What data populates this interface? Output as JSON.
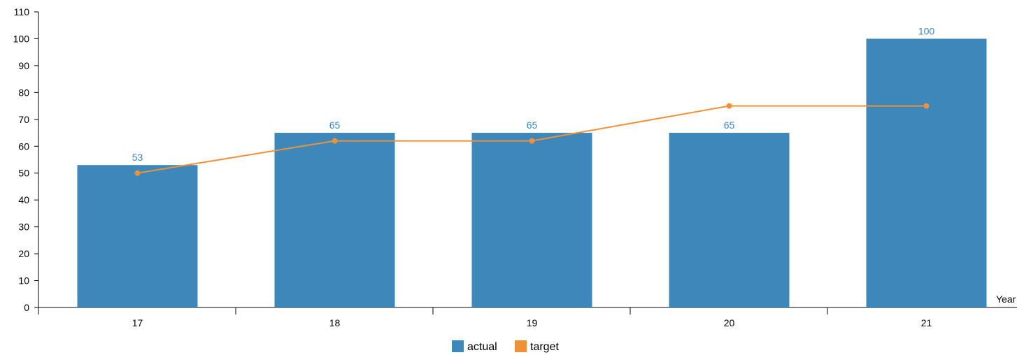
{
  "chart_data": {
    "type": "bar",
    "categories": [
      "17",
      "18",
      "19",
      "20",
      "21"
    ],
    "series": [
      {
        "name": "actual",
        "type": "bar",
        "values": [
          53,
          65,
          65,
          65,
          100
        ],
        "color": "#3d87bb"
      },
      {
        "name": "target",
        "type": "line",
        "values": [
          50,
          62,
          62,
          75,
          75
        ],
        "color": "#ef9139"
      }
    ],
    "xlabel": "Year",
    "ylabel": "",
    "ylim": [
      0,
      110
    ],
    "yticks": [
      0,
      10,
      20,
      30,
      40,
      50,
      60,
      70,
      80,
      90,
      100,
      110
    ],
    "grid": false,
    "legend_position": "bottom",
    "data_labels": "actual"
  }
}
